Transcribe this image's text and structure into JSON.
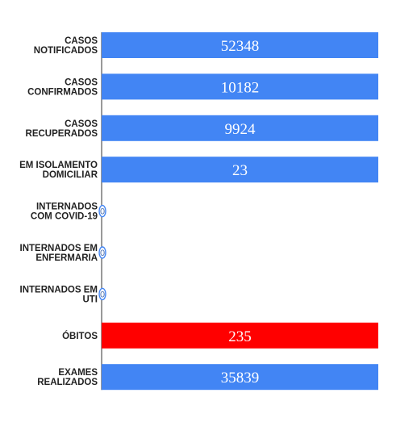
{
  "colors": {
    "default_bar": "#4285f4",
    "highlight_bar": "#ff0000",
    "label_text": "#222222",
    "value_text": "#ffffff",
    "zero_marker": "#4a6fb0"
  },
  "chart_data": {
    "type": "bar",
    "orientation": "horizontal",
    "grid": false,
    "legend": "none",
    "xlim": [
      0,
      55000
    ],
    "categories": [
      [
        "CASOS",
        "NOTIFICADOS"
      ],
      [
        "CASOS",
        "CONFIRMADOS"
      ],
      [
        "CASOS",
        "RECUPERADOS"
      ],
      [
        "EM ISOLAMENTO",
        "DOMICILIAR"
      ],
      [
        "INTERNADOS",
        "COM COVID-19"
      ],
      [
        "INTERNADOS EM",
        "ENFERMARIA"
      ],
      [
        "INTERNADOS EM",
        "UTI"
      ],
      [
        "ÓBITOS"
      ],
      [
        "EXAMES",
        "REALIZADOS"
      ]
    ],
    "values": [
      52348,
      10182,
      9924,
      23,
      0,
      0,
      0,
      235,
      35839
    ],
    "value_labels": [
      "52348",
      "10182",
      "9924",
      "23",
      "0",
      "0",
      "0",
      "235",
      "35839"
    ],
    "bar_colors": [
      "#4285f4",
      "#4285f4",
      "#4285f4",
      "#4285f4",
      "#4285f4",
      "#4285f4",
      "#4285f4",
      "#ff0000",
      "#4285f4"
    ]
  }
}
